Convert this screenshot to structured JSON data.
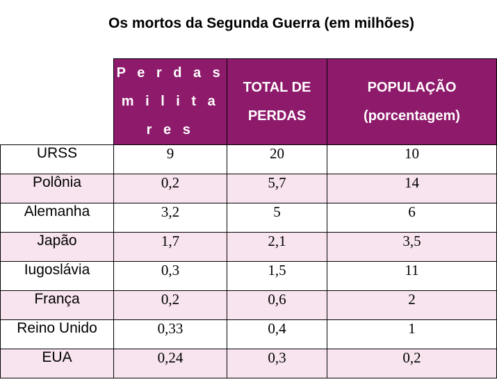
{
  "title": "Os mortos da Segunda Guerra (em milhões)",
  "headers": {
    "military": [
      "P e r d a s",
      "m i l i t a r e s"
    ],
    "total": [
      "TOTAL DE",
      "PERDAS"
    ],
    "population": [
      "POPULAÇÃO",
      "(porcentagem)"
    ]
  },
  "rows": [
    {
      "country": "URSS",
      "military": "9",
      "total": "20",
      "population": "10"
    },
    {
      "country": "Polônia",
      "military": "0,2",
      "total": "5,7",
      "population": "14"
    },
    {
      "country": "Alemanha",
      "military": "3,2",
      "total": "5",
      "population": "6"
    },
    {
      "country": "Japão",
      "military": "1,7",
      "total": "2,1",
      "population": "3,5"
    },
    {
      "country": "Iugoslávia",
      "military": "0,3",
      "total": "1,5",
      "population": "11"
    },
    {
      "country": "França",
      "military": "0,2",
      "total": "0,6",
      "population": "2"
    },
    {
      "country": "Reino Unido",
      "military": "0,33",
      "total": "0,4",
      "population": "1"
    },
    {
      "country": "EUA",
      "military": "0,24",
      "total": "0,3",
      "population": "0,2"
    }
  ],
  "colors": {
    "header_bg": "#8e1a6b",
    "stripe_bg": "#f7e4ee"
  }
}
